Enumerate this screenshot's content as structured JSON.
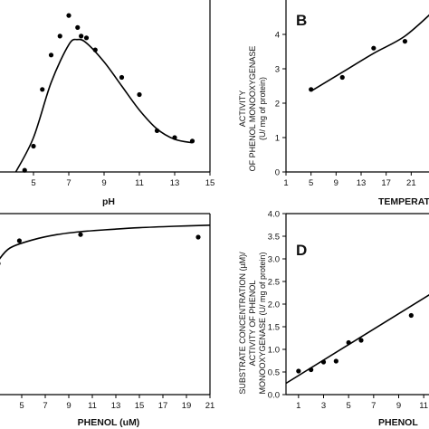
{
  "chart_data": [
    {
      "panel": "A",
      "type": "scatter",
      "panel_label": "",
      "xlabel": "pH",
      "ylabel": "",
      "xlim": [
        3,
        15
      ],
      "ylim": [
        0,
        5
      ],
      "xticks": [
        "5",
        "7",
        "9",
        "11",
        "13",
        "15"
      ],
      "points": [
        [
          4.5,
          0.05
        ],
        [
          5.0,
          0.75
        ],
        [
          5.5,
          2.4
        ],
        [
          6.0,
          3.4
        ],
        [
          6.5,
          3.95
        ],
        [
          7.0,
          4.55
        ],
        [
          7.5,
          4.2
        ],
        [
          7.7,
          3.95
        ],
        [
          8.0,
          3.9
        ],
        [
          8.5,
          3.55
        ],
        [
          10.0,
          2.75
        ],
        [
          11.0,
          2.25
        ],
        [
          12.0,
          1.2
        ],
        [
          13.0,
          1.0
        ],
        [
          14.0,
          0.9
        ]
      ],
      "fit": [
        [
          4.0,
          0.0
        ],
        [
          5.0,
          1.0
        ],
        [
          6.0,
          2.6
        ],
        [
          7.0,
          3.7
        ],
        [
          7.5,
          3.85
        ],
        [
          8.0,
          3.75
        ],
        [
          9.0,
          3.2
        ],
        [
          10.0,
          2.5
        ],
        [
          11.0,
          1.8
        ],
        [
          12.0,
          1.25
        ],
        [
          13.0,
          0.95
        ],
        [
          14.0,
          0.85
        ]
      ]
    },
    {
      "panel": "B",
      "type": "scatter",
      "panel_label": "B",
      "xlabel": "TEMPERATU",
      "ylabel_lines": [
        "ACTIVITY",
        "OF PHENOL MONOOXYGENASE",
        "(U/ mg of protein)"
      ],
      "xlim": [
        1,
        25
      ],
      "ylim": [
        0,
        5
      ],
      "xticks": [
        "1",
        "5",
        "9",
        "13",
        "17",
        "21"
      ],
      "yticks": [
        "0",
        "1",
        "2",
        "3",
        "4"
      ],
      "points": [
        [
          5,
          2.4
        ],
        [
          10,
          2.75
        ],
        [
          15,
          3.6
        ],
        [
          20,
          3.8
        ]
      ],
      "fit": [
        [
          5,
          2.35
        ],
        [
          10,
          2.9
        ],
        [
          15,
          3.45
        ],
        [
          20,
          3.95
        ],
        [
          25,
          4.75
        ]
      ]
    },
    {
      "panel": "C",
      "type": "scatter",
      "panel_label": "",
      "xlabel": "PHENOL (uM)",
      "ylabel": "",
      "xlim": [
        3,
        21
      ],
      "ylim": [
        0,
        5
      ],
      "xticks": [
        "5",
        "7",
        "9",
        "11",
        "13",
        "15",
        "17",
        "19",
        "21"
      ],
      "points": [
        [
          3.0,
          3.62
        ],
        [
          4.8,
          4.25
        ],
        [
          10.0,
          4.42
        ],
        [
          20.0,
          4.35
        ]
      ],
      "fit": [
        [
          3.0,
          3.7
        ],
        [
          4.0,
          4.05
        ],
        [
          6.0,
          4.28
        ],
        [
          8.0,
          4.42
        ],
        [
          10.0,
          4.5
        ],
        [
          12.0,
          4.55
        ],
        [
          15.0,
          4.61
        ],
        [
          18.0,
          4.65
        ],
        [
          21.0,
          4.68
        ]
      ]
    },
    {
      "panel": "D",
      "type": "scatter",
      "panel_label": "D",
      "xlabel": "PHENOL",
      "ylabel_lines": [
        "SUBSTRATE CONCENTRATION (µM)/",
        "ACTIVITY OF PHENOL",
        "MONOOXYGENASE (U/ mg of protein)"
      ],
      "xlim": [
        0,
        12
      ],
      "ylim": [
        0,
        4.0
      ],
      "xticks": [
        "1",
        "3",
        "5",
        "7",
        "9",
        "11"
      ],
      "yticks": [
        "0.0",
        "0.5",
        "1.0",
        "1.5",
        "2.0",
        "2.5",
        "3.0",
        "3.5",
        "4.0"
      ],
      "points": [
        [
          1,
          0.52
        ],
        [
          2,
          0.55
        ],
        [
          3,
          0.72
        ],
        [
          4,
          0.74
        ],
        [
          5,
          1.15
        ],
        [
          6,
          1.2
        ],
        [
          10,
          1.75
        ]
      ],
      "fit": [
        [
          0,
          0.25
        ],
        [
          12,
          2.3
        ]
      ]
    }
  ]
}
